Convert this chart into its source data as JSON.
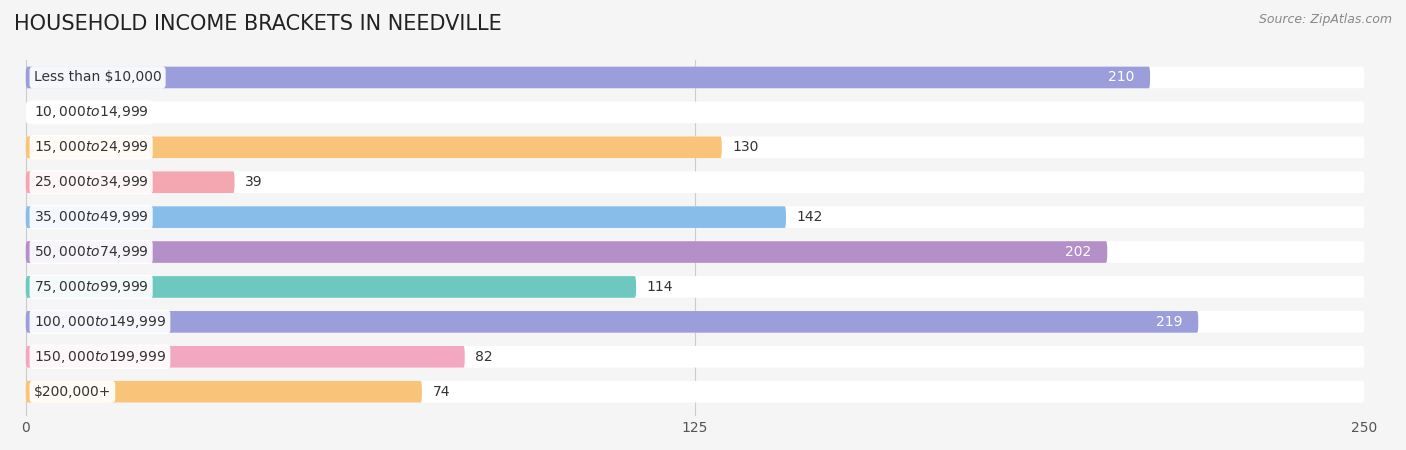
{
  "title": "HOUSEHOLD INCOME BRACKETS IN NEEDVILLE",
  "source": "Source: ZipAtlas.com",
  "categories": [
    "Less than $10,000",
    "$10,000 to $14,999",
    "$15,000 to $24,999",
    "$25,000 to $34,999",
    "$35,000 to $49,999",
    "$50,000 to $74,999",
    "$75,000 to $99,999",
    "$100,000 to $149,999",
    "$150,000 to $199,999",
    "$200,000+"
  ],
  "values": [
    210,
    0,
    130,
    39,
    142,
    202,
    114,
    219,
    82,
    74
  ],
  "bar_colors": [
    "#9b9edb",
    "#f4a7c0",
    "#f9c37a",
    "#f4a7b0",
    "#87bde8",
    "#b48fc8",
    "#6dc9c0",
    "#9b9edb",
    "#f4a7c0",
    "#f9c37a"
  ],
  "label_colors": [
    "white",
    "black",
    "black",
    "black",
    "black",
    "white",
    "black",
    "white",
    "black",
    "black"
  ],
  "xlim": [
    0,
    250
  ],
  "xticks": [
    0,
    125,
    250
  ],
  "background_color": "#f5f5f5",
  "bar_background_color": "#ffffff",
  "title_fontsize": 15,
  "label_fontsize": 10,
  "tick_fontsize": 10,
  "source_fontsize": 9
}
